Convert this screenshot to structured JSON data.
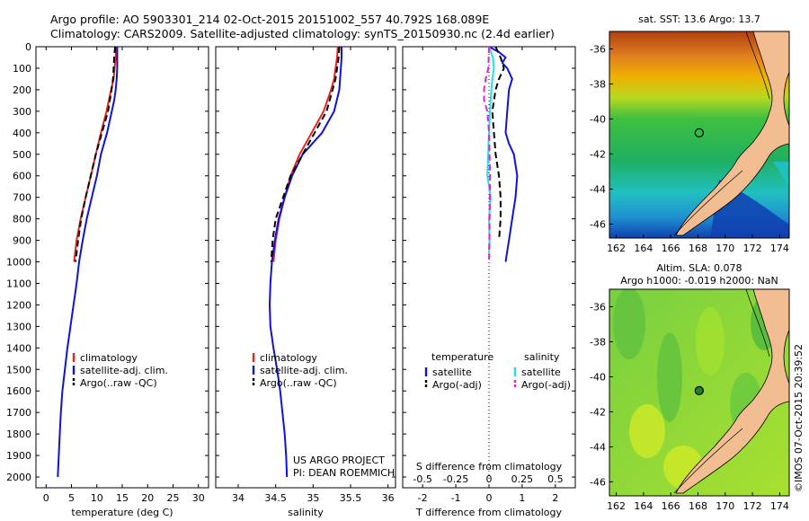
{
  "header": {
    "line1": "Argo profile: AO 5903301_214 02-Oct-2015 20151002_557 40.792S 168.089E",
    "line2": "Climatology: CARS2009. Satellite-adjusted climatology: synTS_20150930.nc (2.4d earlier)"
  },
  "credit": {
    "line1": "US ARGO PROJECT",
    "line2": "PI: DEAN ROEMMICH"
  },
  "copyright": "©IMOS 07-Oct-2015 20:39:52",
  "colors": {
    "red": "#e8251f",
    "blue": "#1010e0",
    "black": "#000000",
    "cyan": "#22e0e0",
    "magenta": "#e020e0",
    "land": "#f2bd90"
  },
  "chart_data": [
    {
      "type": "line",
      "name": "temperature-panel",
      "xlabel": "temperature (deg C)",
      "ylim": [
        0,
        2050
      ],
      "xlim": [
        -2,
        32
      ],
      "xticks": [
        0,
        5,
        10,
        15,
        20,
        25,
        30
      ],
      "yticks": [
        0,
        100,
        200,
        300,
        400,
        500,
        600,
        700,
        800,
        900,
        1000,
        1100,
        1200,
        1300,
        1400,
        1500,
        1600,
        1700,
        1800,
        1900,
        2000
      ],
      "legend": [
        "climatology",
        "satellite-adj. clim.",
        "Argo(..raw -QC)"
      ],
      "legend_position": "lower-middle",
      "series": [
        {
          "name": "climatology",
          "color": "#e8251f",
          "style": "solid",
          "x": [
            13.8,
            13.7,
            13.5,
            13.3,
            12.8,
            11.9,
            10.8,
            9.8,
            8.8,
            7.8,
            6.8,
            6.0,
            5.5
          ],
          "y": [
            0,
            50,
            100,
            150,
            200,
            300,
            400,
            500,
            600,
            700,
            800,
            900,
            1000
          ]
        },
        {
          "name": "satellite-adj. clim.",
          "color": "#1010e0",
          "style": "solid",
          "x": [
            14.0,
            14.0,
            14.0,
            13.9,
            13.7,
            13.4,
            12.0,
            10.8,
            10.0,
            9.0,
            8.0,
            7.2,
            6.5,
            6.0,
            5.4,
            4.8,
            4.2,
            3.7,
            3.2,
            2.9,
            2.7,
            2.5,
            2.4,
            2.3
          ],
          "y": [
            0,
            50,
            100,
            150,
            200,
            250,
            400,
            500,
            600,
            700,
            800,
            900,
            1000,
            1100,
            1200,
            1300,
            1400,
            1500,
            1600,
            1700,
            1800,
            1900,
            1950,
            2000
          ]
        },
        {
          "name": "Argo(..raw -QC)",
          "color": "#000000",
          "style": "dashed",
          "x": [
            13.6,
            13.4,
            13.3,
            13.2,
            12.9,
            12.2,
            11.0,
            9.8,
            8.8,
            7.8,
            6.9,
            6.3,
            5.8
          ],
          "y": [
            0,
            50,
            100,
            150,
            200,
            300,
            400,
            500,
            600,
            700,
            800,
            900,
            1000
          ]
        }
      ]
    },
    {
      "type": "line",
      "name": "salinity-panel",
      "xlabel": "salinity",
      "ylim": [
        0,
        2050
      ],
      "xlim": [
        33.7,
        36.1
      ],
      "xticks": [
        34,
        34.5,
        35,
        35.5,
        36
      ],
      "legend": [
        "climatology",
        "satellite-adj. clim.",
        "Argo(..raw -QC)"
      ],
      "legend_position": "lower-middle",
      "series": [
        {
          "name": "climatology",
          "color": "#e8251f",
          "style": "solid",
          "x": [
            35.33,
            35.32,
            35.3,
            35.28,
            35.24,
            35.14,
            34.98,
            34.82,
            34.7,
            34.62,
            34.55,
            34.5,
            34.47
          ],
          "y": [
            0,
            50,
            100,
            150,
            200,
            300,
            400,
            500,
            600,
            700,
            800,
            900,
            1000
          ]
        },
        {
          "name": "satellite-adj. clim.",
          "color": "#1010e0",
          "style": "solid",
          "x": [
            35.38,
            35.38,
            35.37,
            35.36,
            35.35,
            35.28,
            35.12,
            34.86,
            34.72,
            34.62,
            34.54,
            34.49,
            34.45,
            34.43,
            34.42,
            34.43,
            34.47,
            34.52,
            34.56,
            34.59,
            34.62,
            34.64,
            34.65
          ],
          "y": [
            0,
            50,
            100,
            150,
            200,
            300,
            400,
            500,
            600,
            700,
            800,
            900,
            1000,
            1100,
            1200,
            1300,
            1400,
            1500,
            1600,
            1700,
            1800,
            1900,
            2000
          ]
        },
        {
          "name": "Argo(..raw -QC)",
          "color": "#000000",
          "style": "dashed",
          "x": [
            35.35,
            35.34,
            35.32,
            35.3,
            35.26,
            35.18,
            35.02,
            34.86,
            34.7,
            34.6,
            34.5,
            34.46,
            34.44
          ],
          "y": [
            0,
            50,
            100,
            150,
            200,
            300,
            400,
            500,
            600,
            700,
            800,
            900,
            1000
          ]
        }
      ]
    },
    {
      "type": "line",
      "name": "difference-panel",
      "xlabel": "T difference from climatology",
      "xlabel2": "S difference from climatology",
      "ylim": [
        0,
        2050
      ],
      "xlim": [
        -2.6,
        2.6
      ],
      "xticks": [
        -2,
        -1,
        0,
        1,
        2
      ],
      "xticks_top": [
        -0.5,
        -0.25,
        0,
        0.25,
        0.5
      ],
      "xticks_top_labels": [
        "-0.5",
        "-0.25",
        "0",
        "0.25",
        "0.5"
      ],
      "legend_title_left": "temperature",
      "legend_title_right": "salinity",
      "legend_left": [
        "satellite",
        "Argo(-adj)"
      ],
      "legend_right": [
        "satellite",
        "Argo(-adj)"
      ],
      "zero_line": "dotted",
      "series": [
        {
          "name": "T satellite",
          "color": "#1010e0",
          "style": "solid",
          "x": [
            0.0,
            0.3,
            0.5,
            0.4,
            0.55,
            0.7,
            0.6,
            0.55,
            0.5,
            0.6,
            0.75,
            0.85,
            0.8,
            0.7,
            0.65,
            0.6,
            0.55,
            0.5
          ],
          "y": [
            0,
            25,
            50,
            75,
            100,
            150,
            200,
            300,
            400,
            450,
            500,
            600,
            700,
            800,
            850,
            900,
            950,
            1000
          ]
        },
        {
          "name": "T Argo(-adj)",
          "color": "#000000",
          "style": "dashed",
          "x": [
            0.2,
            0.35,
            0.45,
            0.3,
            0.2,
            0.1,
            0.15,
            0.2,
            0.3,
            0.35,
            0.35,
            0.3
          ],
          "y": [
            0,
            50,
            100,
            150,
            200,
            300,
            400,
            500,
            600,
            700,
            800,
            900
          ]
        },
        {
          "name": "S satellite",
          "color": "#22e0e0",
          "style": "solid",
          "x": [
            0.0,
            0.12,
            0.15,
            0.1,
            0.05,
            0.0,
            -0.05,
            0.05,
            0.0,
            0.02,
            0.0
          ],
          "y": [
            0,
            50,
            100,
            150,
            250,
            400,
            600,
            700,
            800,
            900,
            950
          ]
        },
        {
          "name": "S Argo(-adj)",
          "color": "#e020e0",
          "style": "dashed",
          "x": [
            0.0,
            -0.02,
            -0.1,
            -0.15,
            -0.15,
            -0.05,
            0.0,
            0.03,
            0.02,
            0.0
          ],
          "y": [
            0,
            100,
            150,
            200,
            250,
            300,
            400,
            600,
            800,
            1000
          ]
        }
      ]
    },
    {
      "type": "heatmap",
      "name": "sst-map",
      "title": "sat. SST: 13.6 Argo: 13.7",
      "xlim": [
        161.5,
        174.7
      ],
      "ylim": [
        -46.8,
        -35
      ],
      "xticks": [
        162,
        164,
        166,
        168,
        170,
        172,
        174
      ],
      "yticks": [
        -36,
        -38,
        -40,
        -42,
        -44,
        -46
      ],
      "marker": {
        "lon": 168.089,
        "lat": -40.792
      }
    },
    {
      "type": "heatmap",
      "name": "sla-map",
      "title": "Altim. SLA: 0.078",
      "subtitle": "Argo h1000: -0.019 h2000: NaN",
      "xlim": [
        161.5,
        174.7
      ],
      "ylim": [
        -46.8,
        -35
      ],
      "xticks": [
        162,
        164,
        166,
        168,
        170,
        172,
        174
      ],
      "yticks": [
        -36,
        -38,
        -40,
        -42,
        -44,
        -46
      ],
      "marker": {
        "lon": 168.089,
        "lat": -40.792
      }
    }
  ]
}
